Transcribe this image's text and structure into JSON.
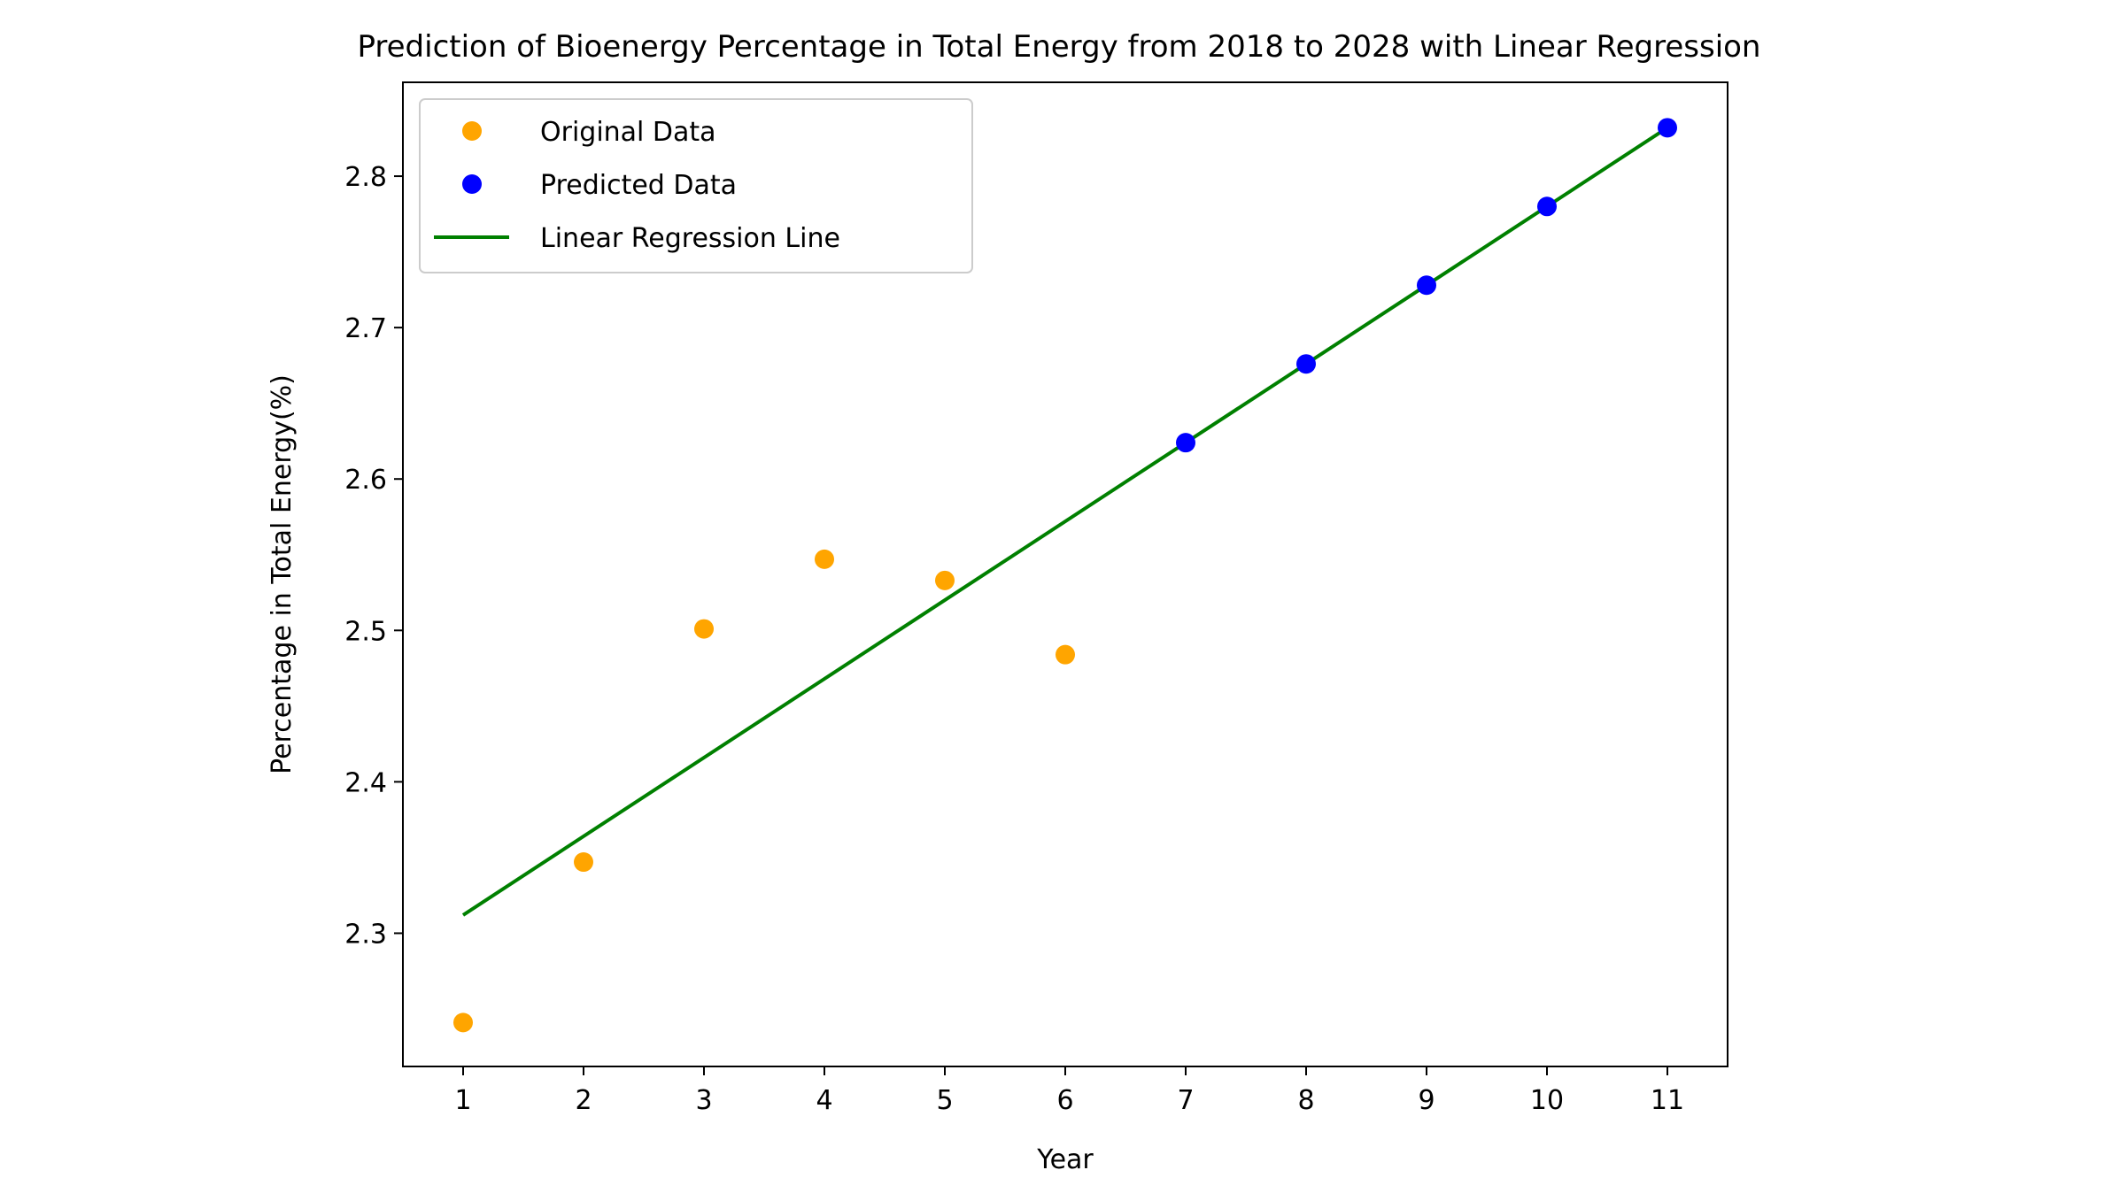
{
  "chart_data": {
    "type": "scatter",
    "title": "Prediction of Bioenergy Percentage in Total Energy from 2018 to 2028 with Linear Regression",
    "xlabel": "Year",
    "ylabel": "Percentage in Total Energy(%)",
    "xlim": [
      0.5,
      11.5
    ],
    "ylim": [
      2.212,
      2.862
    ],
    "xticks": [
      1,
      2,
      3,
      4,
      5,
      6,
      7,
      8,
      9,
      10,
      11
    ],
    "yticks": [
      2.3,
      2.4,
      2.5,
      2.6,
      2.7,
      2.8
    ],
    "xtick_labels": [
      "1",
      "2",
      "3",
      "4",
      "5",
      "6",
      "7",
      "8",
      "9",
      "10",
      "11"
    ],
    "ytick_labels": [
      "2.3",
      "2.4",
      "2.5",
      "2.6",
      "2.7",
      "2.8"
    ],
    "grid": false,
    "legend_position": "top-left",
    "series": [
      {
        "name": "Original Data",
        "kind": "scatter",
        "color": "#ffa500",
        "x": [
          1,
          2,
          3,
          4,
          5,
          6
        ],
        "y": [
          2.241,
          2.347,
          2.501,
          2.547,
          2.533,
          2.484
        ]
      },
      {
        "name": "Predicted Data",
        "kind": "scatter",
        "color": "#0000ff",
        "x": [
          7,
          8,
          9,
          10,
          11
        ],
        "y": [
          2.624,
          2.676,
          2.728,
          2.78,
          2.832
        ]
      },
      {
        "name": "Linear Regression Line",
        "kind": "line",
        "color": "#008000",
        "x": [
          1,
          11
        ],
        "y": [
          2.312,
          2.832
        ]
      }
    ]
  }
}
